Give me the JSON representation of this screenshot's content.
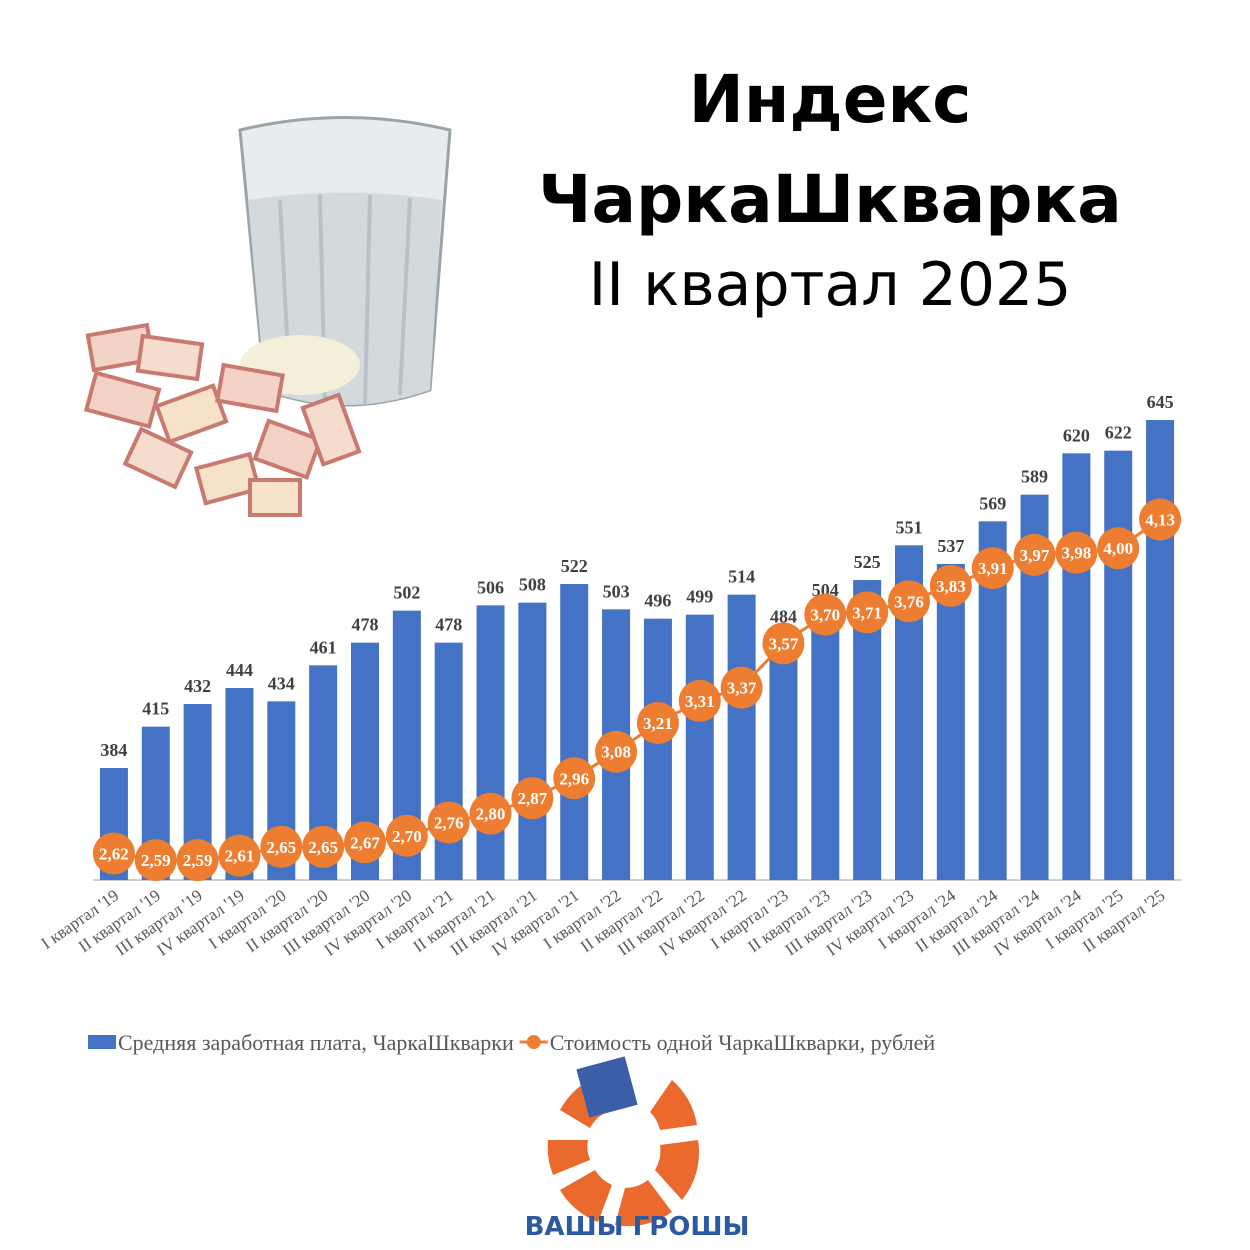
{
  "chart_data": {
    "type": "bar",
    "title": "Индекс ЧаркаШкварка",
    "subtitle": "II квартал 2025",
    "categories": [
      "I квартал '19",
      "II квартал '19",
      "III квартал '19",
      "IV квартал '19",
      "I квартал '20",
      "II квартал '20",
      "III квартал '20",
      "IV квартал '20",
      "I квартал '21",
      "II квартал '21",
      "III квартал '21",
      "IV квартал '21",
      "I квартал '22",
      "II квартал '22",
      "III квартал '22",
      "IV квартал '22",
      "I квартал '23",
      "II квартал '23",
      "III квартал '23",
      "IV квартал '23",
      "I квартал '24",
      "II квартал '24",
      "III квартал '24",
      "IV квартал '24",
      "I квартал '25",
      "II квартал '25"
    ],
    "series": [
      {
        "name": "Средняя заработная плата, ЧаркаШкварки",
        "color": "#4472c4",
        "values": [
          384,
          415,
          432,
          444,
          434,
          461,
          478,
          502,
          478,
          506,
          508,
          522,
          503,
          496,
          499,
          514,
          484,
          504,
          525,
          551,
          537,
          569,
          589,
          620,
          622,
          645
        ]
      },
      {
        "name": "Стоимость одной ЧаркаШкварки, рублей",
        "color": "#ed7d31",
        "type": "line",
        "axis": "y2",
        "values": [
          2.62,
          2.59,
          2.59,
          2.61,
          2.65,
          2.65,
          2.67,
          2.7,
          2.76,
          2.8,
          2.87,
          2.96,
          3.08,
          3.21,
          3.31,
          3.37,
          3.57,
          3.7,
          3.71,
          3.76,
          3.83,
          3.91,
          3.97,
          3.98,
          4.0,
          4.13
        ],
        "value_labels": [
          "2,62",
          "2,59",
          "2,59",
          "2,61",
          "2,65",
          "2,65",
          "2,67",
          "2,70",
          "2,76",
          "2,80",
          "2,87",
          "2,96",
          "3,08",
          "3,21",
          "3,31",
          "3,37",
          "3,57",
          "3,70",
          "3,71",
          "3,76",
          "3,83",
          "3,91",
          "3,97",
          "3,98",
          "4,00",
          "4,13"
        ]
      }
    ],
    "ylim": [
      300,
      660
    ],
    "y2lim": [
      2.5,
      4.2
    ],
    "legend": "bottom"
  },
  "logo": {
    "text": "ВАШЫ ГРОШЫ"
  }
}
